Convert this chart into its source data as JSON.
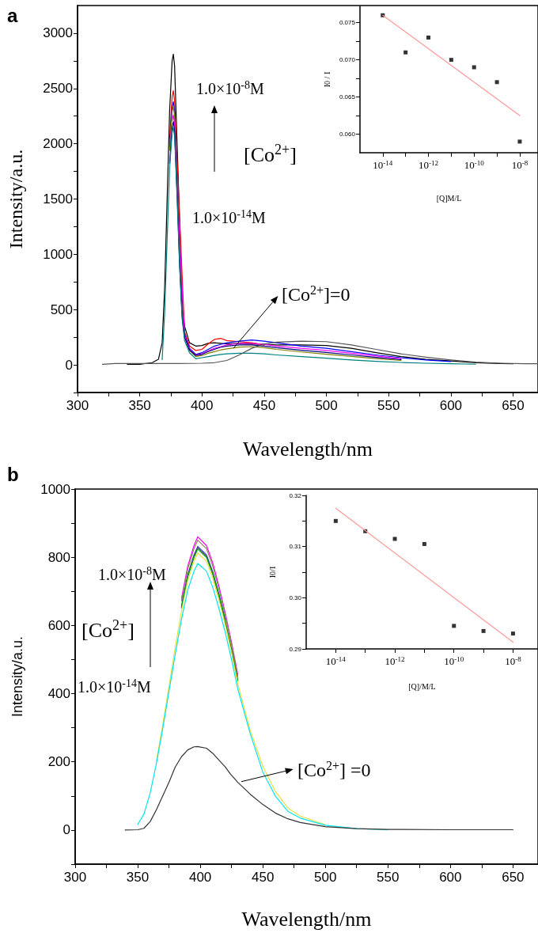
{
  "chart_data": [
    {
      "type": "line",
      "title": "a",
      "xlabel": "Wavelength/nm",
      "ylabel": "Intensity/a.u.",
      "x": [
        340,
        350,
        360,
        365,
        368,
        370,
        372,
        374,
        376,
        377,
        378,
        380,
        382,
        384,
        386,
        390,
        395,
        400,
        405,
        410,
        415,
        420,
        430,
        440,
        450,
        460,
        480,
        500,
        520,
        540,
        560,
        580,
        600,
        620,
        640,
        650
      ],
      "series": [
        {
          "color": "#000000",
          "values": [
            5,
            5,
            20,
            50,
            200,
            700,
            1500,
            2300,
            2750,
            2810,
            2700,
            2000,
            null,
            600,
            350,
            200,
            170,
            175,
            195,
            200,
            195,
            190,
            195,
            190,
            185,
            180,
            180,
            175,
            150,
            110,
            75,
            50,
            35,
            20,
            12,
            10
          ]
        },
        {
          "color": "#ff0000",
          "values": [
            null,
            null,
            null,
            null,
            null,
            null,
            null,
            2050,
            2430,
            2480,
            2380,
            null,
            null,
            null,
            300,
            170,
            130,
            140,
            190,
            230,
            240,
            220,
            210,
            200,
            180,
            null,
            null,
            null,
            null,
            null,
            null,
            null,
            null,
            null,
            null,
            null
          ]
        },
        {
          "color": "#0000ff",
          "values": [
            null,
            null,
            null,
            null,
            null,
            null,
            null,
            1970,
            2330,
            2380,
            2290,
            1680,
            1000,
            490,
            280,
            150,
            95,
            110,
            140,
            170,
            185,
            200,
            215,
            225,
            215,
            200,
            170,
            150,
            120,
            90,
            65,
            45,
            30,
            null,
            null,
            null
          ]
        },
        {
          "color": "#808000",
          "values": [
            null,
            null,
            null,
            null,
            null,
            null,
            null,
            1940,
            2290,
            2340,
            2250,
            1650,
            980,
            470,
            260,
            130,
            75,
            85,
            105,
            120,
            135,
            145,
            160,
            165,
            155,
            140,
            117,
            96,
            76,
            57,
            40,
            null,
            null,
            null,
            null,
            null
          ]
        },
        {
          "color": "#ff00ff",
          "values": [
            null,
            null,
            null,
            null,
            null,
            null,
            null,
            null,
            2210,
            2260,
            2170,
            1590,
            null,
            null,
            260,
            140,
            90,
            100,
            125,
            150,
            165,
            180,
            195,
            195,
            185,
            170,
            150,
            130,
            105,
            80,
            55,
            null,
            null,
            null,
            null,
            null
          ]
        },
        {
          "color": "#000080",
          "values": [
            null,
            null,
            null,
            null,
            null,
            null,
            null,
            1820,
            2150,
            2200,
            2110,
            1550,
            920,
            450,
            250,
            135,
            85,
            95,
            120,
            140,
            160,
            170,
            180,
            180,
            170,
            155,
            132,
            112,
            90,
            68,
            47,
            null,
            null,
            null,
            null,
            null
          ]
        },
        {
          "color": "#008080",
          "values": [
            null,
            null,
            null,
            null,
            48,
            470,
            1130,
            1780,
            2100,
            2150,
            2060,
            1510,
            890,
            420,
            220,
            110,
            55,
            65,
            75,
            85,
            95,
            100,
            105,
            105,
            100,
            90,
            75,
            60,
            45,
            32,
            22,
            15,
            10,
            6,
            null,
            null
          ]
        },
        {
          "color": "#555555",
          "x": [
            320,
            330,
            340,
            360,
            380,
            400,
            410,
            420,
            430,
            440,
            450,
            460,
            480,
            500,
            520,
            540,
            560,
            580,
            600,
            620,
            640,
            660,
            670
          ],
          "values": [
            5,
            12,
            12,
            12,
            12,
            15,
            20,
            40,
            90,
            150,
            190,
            205,
            215,
            210,
            180,
            140,
            100,
            70,
            45,
            25,
            15,
            10,
            10
          ]
        }
      ],
      "xlim": [
        300,
        670
      ],
      "ylim": [
        -250,
        3250
      ],
      "xticks": [
        300,
        {
          "value": 325,
          "label": null
        },
        350,
        {
          "value": 375,
          "label": null
        },
        400,
        {
          "value": 425,
          "label": null
        },
        450,
        {
          "value": 475,
          "label": null
        },
        500,
        {
          "value": 525,
          "label": null
        },
        550,
        {
          "value": 575,
          "label": null
        },
        600,
        {
          "value": 625,
          "label": null
        },
        650
      ],
      "yticks": [
        {
          "value": -250,
          "label": null
        },
        0,
        {
          "value": 250,
          "label": null
        },
        500,
        {
          "value": 750,
          "label": null
        },
        1000,
        {
          "value": 1250,
          "label": null
        },
        1500,
        {
          "value": 1750,
          "label": null
        },
        2000,
        {
          "value": 2250,
          "label": null
        },
        2500,
        {
          "value": 2750,
          "label": null
        },
        3000
      ],
      "annotations": [
        "1.0×10$^{-8}$M",
        "[Co$^{2+}$]",
        "1.0×10$^{-14}$M",
        {
          "text": "[Co$^{2+}$]=0",
          "x": 425,
          "y": 150
        }
      ]
    },
    {
      "type": "scatter",
      "xlabel": "[Q]M/L",
      "ylabel": "I0 / I",
      "marker": "square",
      "log": "x",
      "x": [
        1e-14,
        1e-13,
        1e-12,
        1e-11,
        1e-10,
        1e-09,
        1e-08
      ],
      "series": [
        {
          "color": "#000000",
          "values": [
            0.076,
            0.071,
            0.073,
            0.07,
            0.069,
            0.067,
            0.059
          ]
        },
        {
          "type": "line",
          "color": "#ff9999",
          "marker": "none",
          "x": [
            1e-14,
            1e-08
          ],
          "values": [
            0.076,
            0.0625
          ]
        }
      ],
      "xlim": [
        1e-15,
        6.3e-08
      ],
      "ylim": [
        0.0575,
        0.0772
      ],
      "xticks": [
        {
          "value": 1e-14,
          "label": "10$^{-14}$"
        },
        {
          "value": 1e-13,
          "label": null
        },
        {
          "value": 1e-12,
          "label": "10$^{-12}$"
        },
        {
          "value": 1e-11,
          "label": null
        },
        {
          "value": 1e-10,
          "label": "10$^{-10}$"
        },
        {
          "value": 1e-09,
          "label": null
        },
        {
          "value": 1e-08,
          "label": "10$^{-8}$"
        }
      ],
      "yticks": [
        {
          "value": 0.06,
          "label": "0.060"
        },
        {
          "value": 0.0625,
          "label": null
        },
        {
          "value": 0.065,
          "label": "0.065"
        },
        {
          "value": 0.0675,
          "label": null
        },
        {
          "value": 0.07,
          "label": "0.070"
        },
        {
          "value": 0.0725,
          "label": null
        },
        {
          "value": 0.075,
          "label": "0.075"
        }
      ]
    },
    {
      "type": "line",
      "title": "b",
      "xlabel": "Wavelength/nm",
      "ylabel": "Intensity/a.u.",
      "x": [
        350,
        355,
        360,
        365,
        370,
        375,
        380,
        385,
        390,
        395,
        398,
        405,
        410,
        415,
        420,
        425,
        430,
        440,
        450,
        460,
        470,
        480,
        500,
        525,
        550
      ],
      "series": [
        {
          "color": "#ff00ff",
          "values": [
            null,
            null,
            null,
            null,
            null,
            null,
            null,
            679,
            774,
            834,
            860,
            834,
            783,
            714,
            636,
            550,
            456,
            null,
            null,
            null,
            null,
            null,
            null,
            null,
            null
          ]
        },
        {
          "color": "#8c8c5a",
          "values": [
            null,
            null,
            null,
            null,
            null,
            null,
            null,
            672,
            765,
            825,
            850,
            825,
            774,
            706,
            629,
            544,
            451,
            null,
            null,
            null,
            null,
            null,
            null,
            null,
            null
          ]
        },
        {
          "color": "#3a3aff",
          "values": [
            null,
            null,
            null,
            null,
            null,
            null,
            null,
            657,
            749,
            807,
            832,
            807,
            757,
            691,
            616,
            null,
            null,
            null,
            null,
            null,
            null,
            null,
            null,
            null,
            null
          ]
        },
        {
          "color": "#444444",
          "values": [
            null,
            null,
            null,
            null,
            null,
            null,
            null,
            654,
            745,
            803,
            828,
            803,
            753,
            687,
            613,
            530,
            439,
            null,
            null,
            null,
            null,
            null,
            null,
            null,
            null
          ]
        },
        {
          "color": "#00b000",
          "values": [
            null,
            null,
            null,
            null,
            null,
            null,
            null,
            651,
            742,
            799,
            824,
            799,
            750,
            684,
            610,
            527,
            437,
            null,
            null,
            null,
            null,
            null,
            null,
            null,
            null
          ]
        },
        {
          "color": "#e8e040",
          "values": [
            null,
            null,
            null,
            203,
            309,
            422,
            536,
            641,
            731,
            788,
            812,
            788,
            739,
            674,
            601,
            520,
            430,
            292,
            187,
            114,
            65,
            41,
            16,
            null,
            null
          ]
        },
        {
          "color": "#00e5ee",
          "values": [
            16,
            47,
            109,
            196,
            297,
            407,
            516,
            618,
            704,
            759,
            782,
            759,
            712,
            649,
            579,
            500,
            414,
            282,
            170,
            100,
            55,
            35,
            14,
            4,
            1
          ]
        },
        {
          "color": "#333333",
          "x": [
            340,
            350,
            355,
            360,
            365,
            370,
            375,
            380,
            385,
            390,
            395,
            398,
            405,
            410,
            415,
            420,
            424,
            430,
            440,
            450,
            460,
            470,
            480,
            500,
            525,
            550,
            600,
            650
          ],
          "values": [
            0,
            1,
            5,
            25,
            60,
            100,
            140,
            185,
            215,
            235,
            244,
            245,
            240,
            225,
            205,
            185,
            165,
            140,
            105,
            75,
            50,
            33,
            22,
            10,
            4,
            2,
            1,
            1
          ]
        }
      ],
      "xlim": [
        300,
        670
      ],
      "ylim": [
        -100,
        1000
      ],
      "xticks": [
        300,
        {
          "value": 325,
          "label": null
        },
        350,
        {
          "value": 375,
          "label": null
        },
        400,
        {
          "value": 425,
          "label": null
        },
        450,
        {
          "value": 475,
          "label": null
        },
        500,
        {
          "value": 525,
          "label": null
        },
        550,
        {
          "value": 575,
          "label": null
        },
        600,
        {
          "value": 625,
          "label": null
        },
        650
      ],
      "yticks": [
        {
          "value": -100,
          "label": null
        },
        0,
        {
          "value": 100,
          "label": null
        },
        200,
        {
          "value": 300,
          "label": null
        },
        400,
        {
          "value": 500,
          "label": null
        },
        600,
        {
          "value": 700,
          "label": null
        },
        800,
        {
          "value": 900,
          "label": null
        },
        1000
      ],
      "annotations": [
        "1.0×10$^{-8}$M",
        "[Co$^{2+}$]",
        "1.0×10$^{-14}$M",
        {
          "text": "[Co$^{2+}$] =0",
          "x": 433,
          "y": 142
        }
      ]
    },
    {
      "type": "scatter",
      "xlabel": "[Q]/M/L",
      "ylabel": "I0/I",
      "marker": "square",
      "log": "x",
      "x": [
        1e-14,
        1e-13,
        1e-12,
        1e-11,
        1e-10,
        1e-09,
        1e-08
      ],
      "series": [
        {
          "color": "#000000",
          "values": [
            0.315,
            0.313,
            0.3115,
            0.3105,
            0.2945,
            0.2935,
            0.293
          ]
        },
        {
          "type": "line",
          "color": "#ff9999",
          "marker": "none",
          "x": [
            1e-14,
            1e-08
          ],
          "values": [
            0.3175,
            0.2913
          ]
        }
      ],
      "xlim": [
        1e-15,
        7e-08
      ],
      "ylim": [
        0.29,
        0.32
      ],
      "xticks": [
        {
          "value": 1e-14,
          "label": "10$^{-14}$"
        },
        {
          "value": 1e-13,
          "label": null
        },
        {
          "value": 1e-12,
          "label": "10$^{-12}$"
        },
        {
          "value": 1e-11,
          "label": null
        },
        {
          "value": 1e-10,
          "label": "10$^{-10}$"
        },
        {
          "value": 1e-09,
          "label": null
        },
        {
          "value": 1e-08,
          "label": "10$^{-8}$"
        }
      ],
      "yticks": [
        0.29,
        {
          "value": 0.295,
          "label": null
        },
        {
          "value": 0.3,
          "label": "0.30"
        },
        {
          "value": 0.305,
          "label": null
        },
        0.31,
        {
          "value": 0.315,
          "label": null
        },
        0.32
      ]
    }
  ]
}
